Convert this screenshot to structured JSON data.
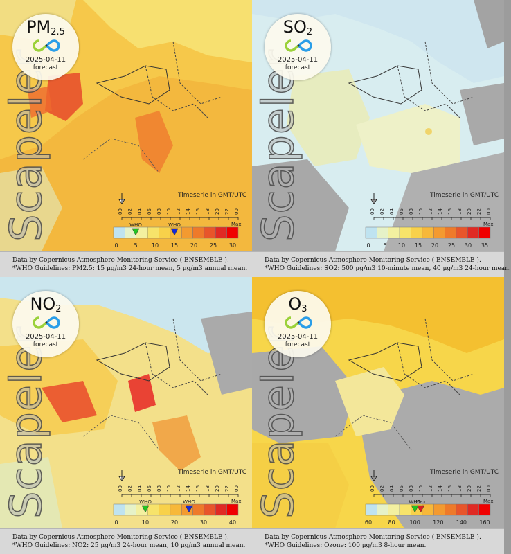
{
  "brand": "Scapeler",
  "timeserie_label": "Timeserie in GMT/UTC",
  "hours": [
    "00",
    "02",
    "04",
    "06",
    "08",
    "10",
    "12",
    "14",
    "16",
    "18",
    "20",
    "22",
    "00"
  ],
  "who_label": "WHO",
  "max_label": "Max",
  "panels": [
    {
      "pollutant": "PM",
      "pollutant_sub": "2.5",
      "date": "2025-04-11",
      "forecast": "forecast",
      "legend_ticks": [
        "0",
        "5",
        "10",
        "15",
        "20",
        "25",
        "30"
      ],
      "who_markers": [
        {
          "label": "WHO",
          "value": 5,
          "color": "#22c422"
        },
        {
          "label": "WHO",
          "value": 15,
          "color": "#1428d8"
        }
      ],
      "caption_source": "Data by Copernicus Atmosphere Monitoring Service ( ENSEMBLE ).",
      "caption_who": "*WHO Guidelines: PM2.5: 15 µg/m3 24-hour mean, 5 µg/m3 annual mean."
    },
    {
      "pollutant": "SO",
      "pollutant_sub": "2",
      "date": "2025-04-11",
      "forecast": "forecast",
      "legend_ticks": [
        "0",
        "5",
        "10",
        "15",
        "20",
        "25",
        "30",
        "35"
      ],
      "who_markers": [],
      "caption_source": "Data by Copernicus Atmosphere Monitoring Service ( ENSEMBLE ).",
      "caption_who": "*WHO Guidelines: SO2: 500 µg/m3 10-minute mean, 40 µg/m3 24-hour mean."
    },
    {
      "pollutant": "NO",
      "pollutant_sub": "2",
      "date": "2025-04-11",
      "forecast": "forecast",
      "legend_ticks": [
        "0",
        "10",
        "20",
        "30",
        "40"
      ],
      "who_markers": [
        {
          "label": "WHO",
          "value": 10,
          "color": "#22c422"
        },
        {
          "label": "WHO",
          "value": 25,
          "color": "#1428d8"
        }
      ],
      "caption_source": "Data by Copernicus Atmosphere Monitoring Service ( ENSEMBLE ).",
      "caption_who": "*WHO Guidelines: NO2: 25 µg/m3 24-hour mean, 10 µg/m3 annual mean."
    },
    {
      "pollutant": "O",
      "pollutant_sub": "3",
      "date": "2025-04-11",
      "forecast": "forecast",
      "legend_ticks": [
        "60",
        "80",
        "100",
        "120",
        "140",
        "160"
      ],
      "who_markers": [
        {
          "label": "WHO",
          "value": 100,
          "color": "#22c422"
        },
        {
          "label": "Max",
          "value": 105,
          "color": "#d82020"
        }
      ],
      "caption_source": "Data by Copernicus Atmosphere Monitoring Service ( ENSEMBLE ).",
      "caption_who": "*WHO Guidelines: Ozone: 100 µg/m3 8-hour mean."
    }
  ],
  "colors": {
    "scale": [
      "#bfe3f0",
      "#e6f2c8",
      "#f3f0a0",
      "#f7e36a",
      "#f8d14a",
      "#f7b83a",
      "#f39a30",
      "#ee7a2a",
      "#e8552a",
      "#e02a24",
      "#f00000"
    ],
    "land_grey": "#a9a9a9",
    "sea_light": "#cfe6ee",
    "caption_bg": "#d8d8d8"
  }
}
